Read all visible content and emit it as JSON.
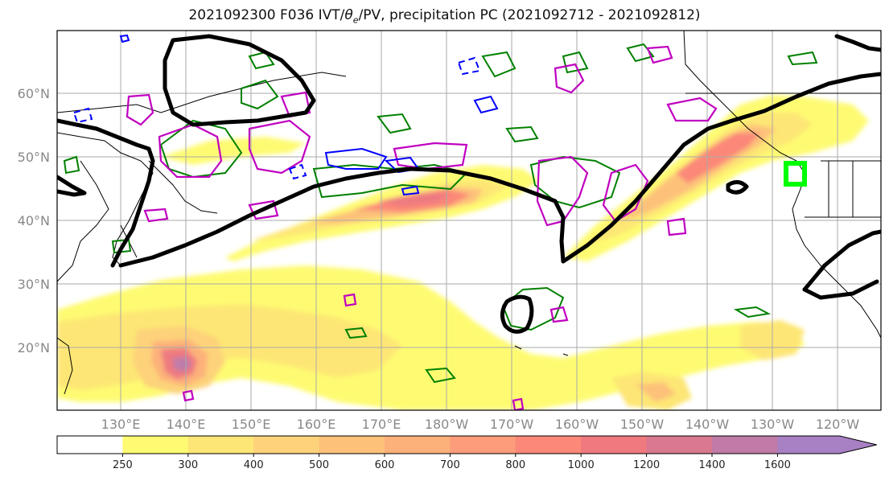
{
  "title": {
    "prefix": "2021092300 F036 IVT/",
    "theta": "θ",
    "theta_sub": "e",
    "suffix": "/PV, precipitation PC (2021092712 - 2021092812)"
  },
  "lat_labels": [
    "60°N",
    "50°N",
    "40°N",
    "30°N",
    "20°N"
  ],
  "lon_labels": [
    "130°E",
    "140°E",
    "150°E",
    "160°E",
    "170°E",
    "180°W",
    "170°W",
    "160°W",
    "150°W",
    "140°W",
    "130°W",
    "120°W"
  ],
  "colorbar": {
    "ticks": [
      "250",
      "300",
      "400",
      "500",
      "600",
      "700",
      "800",
      "1000",
      "1200",
      "1400",
      "1600"
    ],
    "colors": [
      "#ffffff",
      "#fefb72",
      "#fde675",
      "#fdd27a",
      "#fdc17a",
      "#fdb17a",
      "#fd9c7a",
      "#fb8878",
      "#ee7a80",
      "#d9788f",
      "#c07ba8",
      "#a880c4"
    ]
  },
  "colors": {
    "ivt_contour": "#000000",
    "theta_contour": "#008000",
    "pv_contour": "#c000c0",
    "neg_contour": "#0000ff",
    "target_box": "#00ff00",
    "grid": "#aaaaaa",
    "coast": "#000000"
  }
}
